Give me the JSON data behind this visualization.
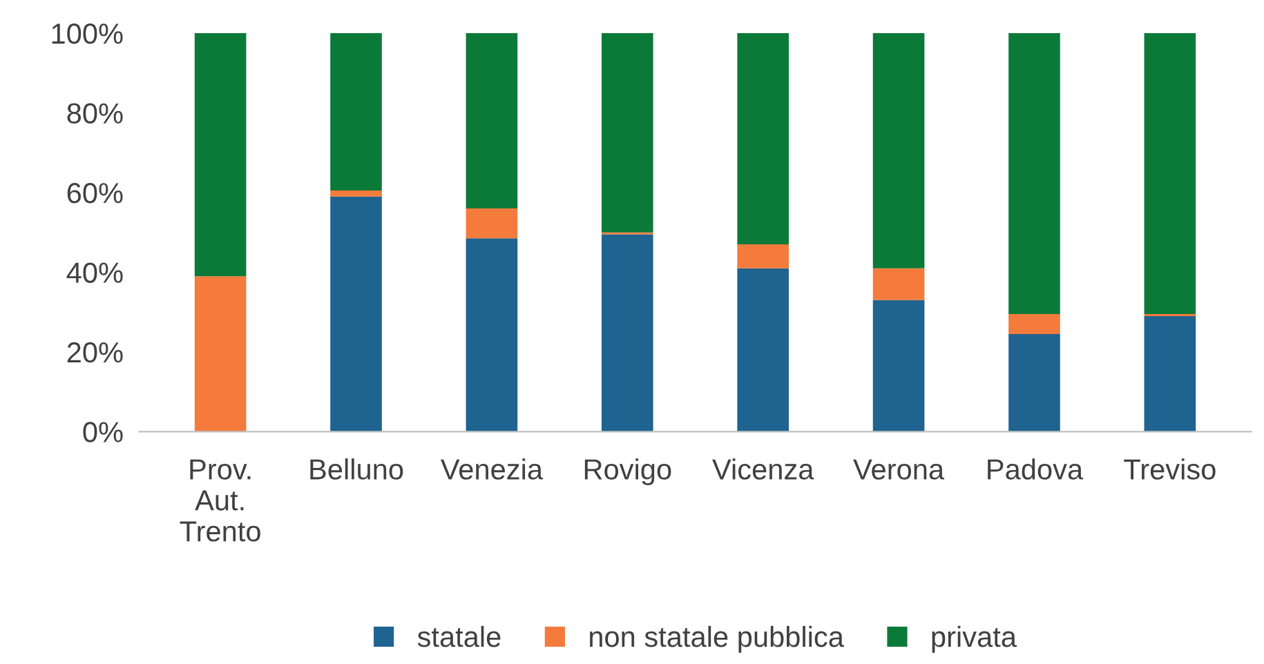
{
  "chart_data": {
    "type": "bar",
    "stacked": true,
    "categories": [
      "Prov.\nAut.\nTrento",
      "Belluno",
      "Venezia",
      "Rovigo",
      "Vicenza",
      "Verona",
      "Padova",
      "Treviso"
    ],
    "series": [
      {
        "name": "statale",
        "color": "#1f6390",
        "values": [
          0,
          59,
          48.5,
          49.5,
          41,
          33,
          24.5,
          29
        ]
      },
      {
        "name": "non statale pubblica",
        "color": "#f47b3c",
        "values": [
          39,
          1.5,
          7.5,
          0.5,
          6,
          8,
          5,
          0.5
        ]
      },
      {
        "name": "privata",
        "color": "#0b7a38",
        "values": [
          61,
          39.5,
          44,
          50,
          53,
          59,
          70.5,
          70.5
        ]
      }
    ],
    "ylim": [
      0,
      100
    ],
    "yticks": [
      {
        "value": 0,
        "label": "0%"
      },
      {
        "value": 20,
        "label": "20%"
      },
      {
        "value": 40,
        "label": "40%"
      },
      {
        "value": 60,
        "label": "60%"
      },
      {
        "value": 80,
        "label": "80%"
      },
      {
        "value": 100,
        "label": "100%"
      }
    ],
    "grid": false,
    "legend": "bottom"
  }
}
